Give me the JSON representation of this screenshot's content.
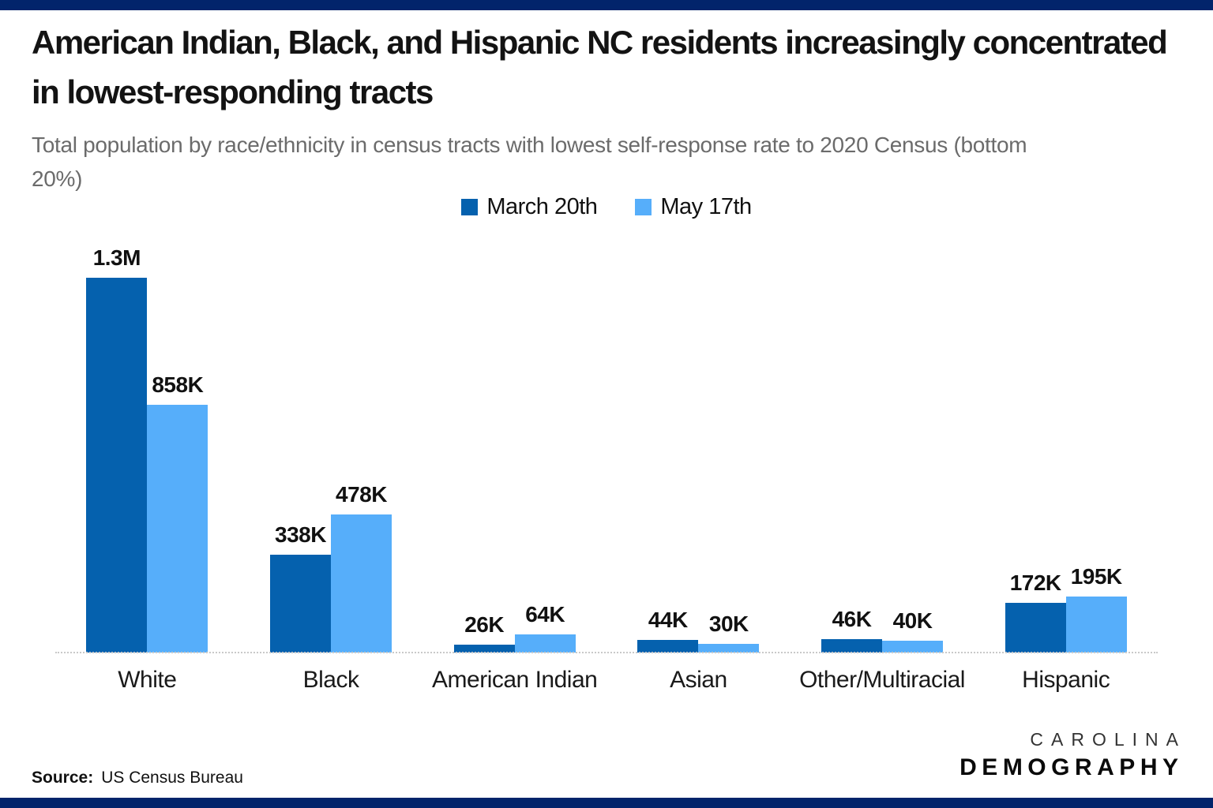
{
  "page": {
    "title": "American Indian, Black, and Hispanic NC residents increasingly concentrated in lowest-responding tracts",
    "subtitle": "Total population by race/ethnicity in census tracts with lowest self-response rate to 2020 Census (bottom 20%)",
    "source_label": "Source:",
    "source_value": "US Census Bureau",
    "brand_line1": "CAROLINA",
    "brand_line2": "DEMOGRAPHY"
  },
  "colors": {
    "border_band": "#02246B",
    "series1": "#0561AE",
    "series2": "#56AEFA",
    "axis_line": "#c9c9c9",
    "background": "#ffffff"
  },
  "chart_data": {
    "type": "bar",
    "title": "American Indian, Black, and Hispanic NC residents increasingly concentrated in lowest-responding tracts",
    "subtitle": "Total population by race/ethnicity in census tracts with lowest self-response rate to 2020 Census (bottom 20%)",
    "categories": [
      "White",
      "Black",
      "American Indian",
      "Asian",
      "Other/Multiracial",
      "Hispanic"
    ],
    "series": [
      {
        "name": "March 20th",
        "color": "#0561AE",
        "values": [
          1300000,
          338000,
          26000,
          44000,
          46000,
          172000
        ],
        "labels": [
          "1.3M",
          "338K",
          "26K",
          "44K",
          "46K",
          "172K"
        ]
      },
      {
        "name": "May 17th",
        "color": "#56AEFA",
        "values": [
          858000,
          478000,
          64000,
          30000,
          40000,
          195000
        ],
        "labels": [
          "858K",
          "478K",
          "64K",
          "30K",
          "40K",
          "195K"
        ]
      }
    ],
    "xlabel": "",
    "ylabel": "",
    "ylim": [
      0,
      1340000
    ],
    "grid": false,
    "legend_position": "top-center",
    "source": "US Census Bureau"
  }
}
